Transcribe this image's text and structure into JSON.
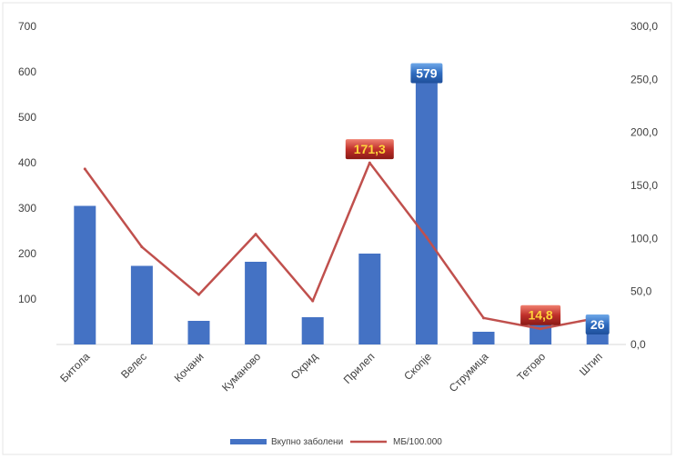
{
  "chart_data": {
    "type": "bar",
    "categories": [
      "Битола",
      "Велес",
      "Кочани",
      "Куманово",
      "Охрид",
      "Прилеп",
      "Скопје",
      "Струмица",
      "Тетово",
      "Штип"
    ],
    "series": [
      {
        "name": "Вкупно заболени",
        "type": "bar",
        "axis": "left",
        "color": "#4472c4",
        "values": [
          305,
          173,
          52,
          182,
          60,
          200,
          579,
          28,
          50,
          26
        ]
      },
      {
        "name": "МБ/100.000",
        "type": "line",
        "axis": "right",
        "color": "#c0504d",
        "values": [
          165.5,
          92,
          47,
          104,
          41,
          171.3,
          101,
          25,
          14.8,
          25
        ]
      }
    ],
    "y_left": {
      "lim": [
        0,
        700
      ],
      "ticks": [
        "700",
        "600",
        "500",
        "400",
        "300",
        "200",
        "100"
      ]
    },
    "y_right": {
      "lim": [
        0,
        300
      ],
      "ticks": [
        "300,0",
        "250,0",
        "200,0",
        "150,0",
        "100,0",
        "50,0",
        "0,0"
      ]
    },
    "data_labels": [
      {
        "text": "579",
        "series": 0,
        "index": 6,
        "style": "blue"
      },
      {
        "text": "171,3",
        "series": 1,
        "index": 5,
        "style": "red"
      },
      {
        "text": "14,8",
        "series": 1,
        "index": 8,
        "style": "red"
      },
      {
        "text": "26",
        "series": 0,
        "index": 9,
        "style": "blue"
      }
    ],
    "legend": {
      "placement": "bottom",
      "items": [
        "Вкупно заболени",
        "МБ/100.000"
      ]
    },
    "grid": false
  }
}
